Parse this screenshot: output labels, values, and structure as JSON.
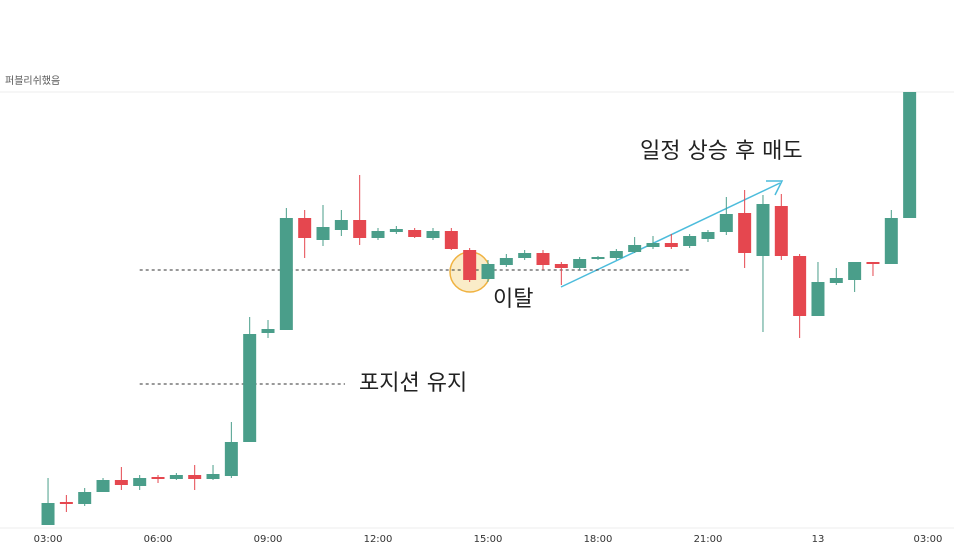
{
  "chart_data": {
    "type": "candlestick",
    "watermark": "퍼블리쉬했음",
    "up_color": "#4a9e8a",
    "down_color": "#e5474f",
    "x": [
      0,
      0.5,
      1,
      1.5,
      2,
      2.5,
      3,
      3.5,
      4,
      4.5,
      5,
      5.5,
      6,
      6.5,
      7,
      7.5,
      8,
      8.5,
      9,
      9.5,
      10,
      10.5,
      11,
      11.5,
      12,
      12.5,
      13,
      13.5,
      14,
      14.5,
      15,
      15.5,
      16,
      16.5,
      17,
      17.5,
      18,
      18.5,
      19,
      19.5,
      20,
      20.5,
      21,
      21.5,
      22,
      22.5,
      23,
      23.5
    ],
    "open": [
      5,
      28,
      26,
      38,
      50,
      44,
      53,
      51,
      55,
      51,
      54,
      88,
      197,
      200,
      312,
      290,
      300,
      310,
      292,
      298,
      300,
      292,
      299,
      280,
      251,
      265,
      272,
      277,
      266,
      262,
      271,
      272,
      278,
      283,
      287,
      284,
      291,
      298,
      317,
      274,
      324,
      274,
      214,
      247,
      250,
      268,
      266,
      312
    ],
    "high": [
      52,
      35,
      42,
      52,
      63,
      55,
      55,
      57,
      65,
      65,
      108,
      213,
      210,
      322,
      320,
      325,
      320,
      355,
      302,
      304,
      302,
      302,
      302,
      282,
      270,
      276,
      280,
      280,
      268,
      273,
      274,
      281,
      293,
      294,
      296,
      296,
      300,
      333,
      340,
      335,
      336,
      276,
      268,
      262,
      268,
      268,
      320,
      438
    ],
    "low": [
      5,
      18,
      24,
      38,
      40,
      40,
      47,
      50,
      40,
      50,
      52,
      88,
      192,
      200,
      272,
      284,
      294,
      285,
      290,
      296,
      292,
      290,
      280,
      248,
      248,
      263,
      270,
      260,
      245,
      260,
      270,
      270,
      277,
      281,
      281,
      282,
      288,
      295,
      262,
      198,
      270,
      192,
      214,
      245,
      238,
      254,
      266,
      312
    ],
    "close": [
      27,
      26,
      38,
      50,
      45,
      52,
      51,
      55,
      51,
      56,
      88,
      196,
      201,
      312,
      292,
      303,
      310,
      292,
      299,
      301,
      293,
      299,
      281,
      250,
      266,
      272,
      277,
      265,
      262,
      271,
      273,
      279,
      285,
      287,
      283,
      294,
      298,
      316,
      277,
      326,
      274,
      214,
      248,
      252,
      268,
      266,
      312,
      438
    ],
    "xlim": [
      -1.31,
      24.71
    ],
    "ylim": [
      0,
      440
    ],
    "xticks": [
      {
        "value": 0,
        "label": "03:00"
      },
      {
        "value": 3,
        "label": "06:00"
      },
      {
        "value": 6,
        "label": "09:00"
      },
      {
        "value": 9,
        "label": "12:00"
      },
      {
        "value": 12,
        "label": "15:00"
      },
      {
        "value": 15,
        "label": "18:00"
      },
      {
        "value": 18,
        "label": "21:00"
      },
      {
        "value": 21,
        "label": "13"
      },
      {
        "value": 24,
        "label": "03:00"
      }
    ],
    "reference_lines": [
      {
        "value": 260,
        "from": 2.5,
        "to": 17.5
      },
      {
        "value": 146,
        "from": 2.5,
        "to": 8.1
      }
    ],
    "annotations": [
      {
        "text": "일정 상승 후 매도"
      },
      {
        "text": "이탈"
      },
      {
        "text": "포지션 유지"
      }
    ]
  }
}
